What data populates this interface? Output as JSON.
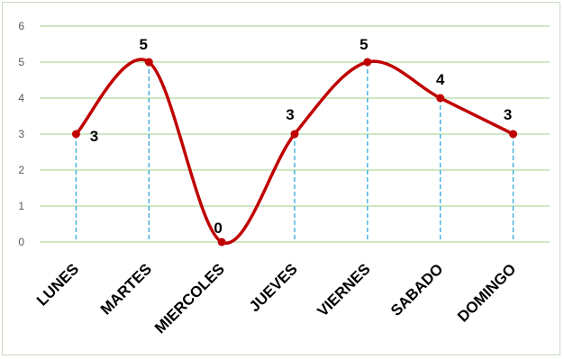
{
  "chart_data": {
    "type": "line",
    "smooth": true,
    "categories": [
      "LUNES",
      "MARTES",
      "MIERCOLES",
      "JUEVES",
      "VIERNES",
      "SABADO",
      "DOMINGO"
    ],
    "values": [
      3,
      5,
      0,
      3,
      5,
      4,
      3
    ],
    "ylim": [
      0,
      6
    ],
    "yticks": [
      "0",
      "1",
      "2",
      "3",
      "4",
      "5",
      "6"
    ],
    "grid": true,
    "drop_lines": true,
    "data_labels": [
      "3",
      "5",
      "0",
      "3",
      "5",
      "4",
      "3"
    ],
    "colors": {
      "line": "#c00000",
      "marker": "#c00000",
      "gridline": "#9bd18a",
      "drop_line": "#2eaadc",
      "frame": "#c9dcc0"
    }
  }
}
